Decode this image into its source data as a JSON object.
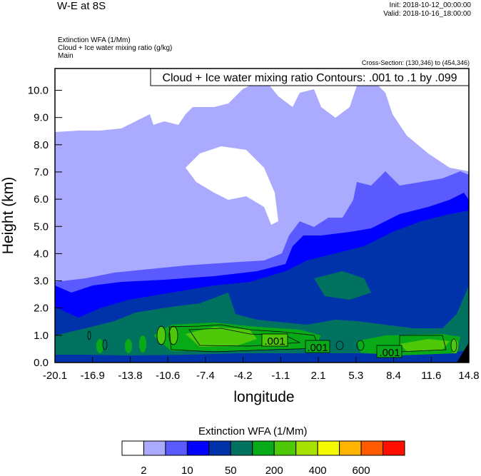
{
  "header": {
    "title": "W-E at 8S",
    "init": "Init: 2018-10-12_00:00:00",
    "valid": "Valid: 2018-10-16_18:00:00",
    "fields": [
      "Extinction WFA   (1/Mm)",
      "Cloud + Ice water mixing ratio   (g/kg)",
      "Main"
    ],
    "cross_section": "Cross-Section: (130,346) to (454,346)"
  },
  "chart_data": {
    "type": "heatmap",
    "title": "Cloud + Ice water mixing ratio Contours: .001 to .1 by .099",
    "xlabel": "longitude",
    "ylabel": "Height (km)",
    "xlim": [
      -20.1,
      14.8
    ],
    "ylim": [
      0,
      10.8
    ],
    "x_ticks": [
      "-20.1",
      "-16.9",
      "-13.8",
      "-10.6",
      "-7.4",
      "-4.2",
      "-1.1",
      "2.1",
      "5.3",
      "8.4",
      "11.6",
      "14.8"
    ],
    "y_ticks": [
      "0.0",
      "1.0",
      "2.0",
      "3.0",
      "4.0",
      "5.0",
      "6.0",
      "7.0",
      "8.0",
      "9.0",
      "10.0"
    ],
    "contour_labels": [
      ".001",
      ".001",
      ".001"
    ],
    "colorbar": {
      "title": "Extinction WFA  (1/Mm)",
      "colors": [
        "#ffffff",
        "#aaaaff",
        "#5a5aff",
        "#0000ff",
        "#0033aa",
        "#027260",
        "#08aa18",
        "#50c80a",
        "#a8e200",
        "#f4fa00",
        "#ffb400",
        "#ff5a00",
        "#ff0f00"
      ],
      "labels": [
        "2",
        "10",
        "50",
        "200",
        "400",
        "600"
      ]
    }
  }
}
